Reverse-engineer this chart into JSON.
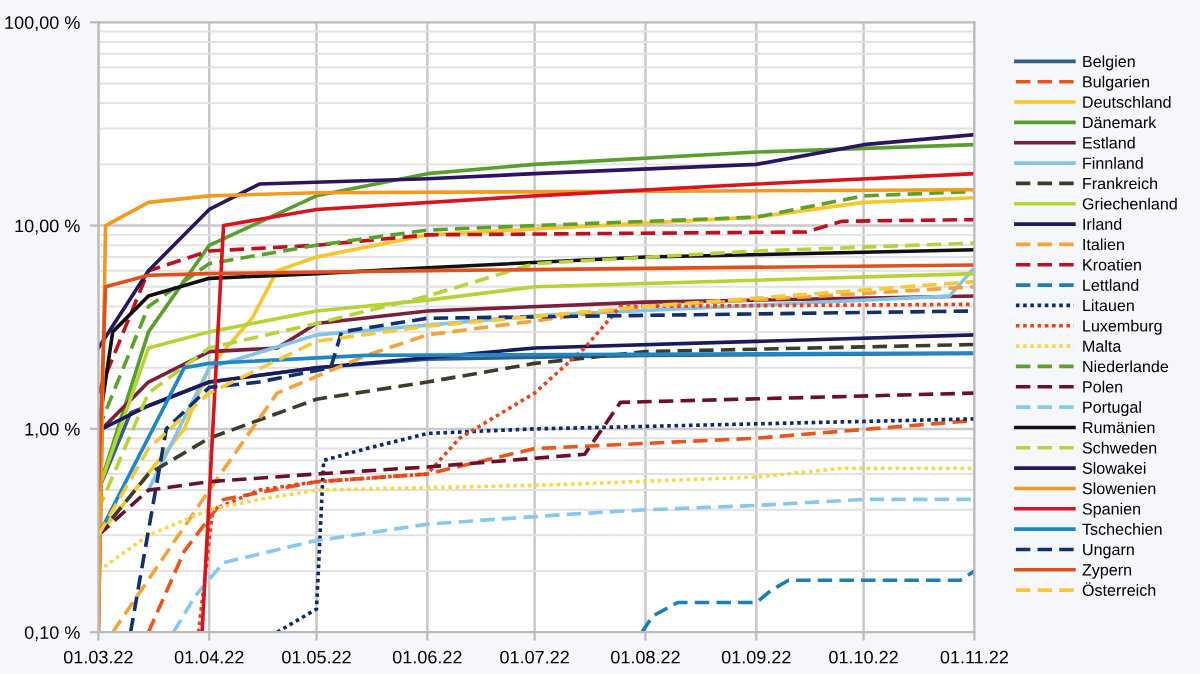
{
  "chart_data": {
    "type": "line",
    "log": "y",
    "grid": true,
    "legend": "right",
    "xlim": [
      "2022-03-01",
      "2022-11-01"
    ],
    "ylim": [
      0.1,
      100
    ],
    "xticks": [
      {
        "value": "2022-03-01",
        "label": "01.03.22"
      },
      {
        "value": "2022-04-01",
        "label": "01.04.22"
      },
      {
        "value": "2022-05-01",
        "label": "01.05.22"
      },
      {
        "value": "2022-06-01",
        "label": "01.06.22"
      },
      {
        "value": "2022-07-01",
        "label": "01.07.22"
      },
      {
        "value": "2022-08-01",
        "label": "01.08.22"
      },
      {
        "value": "2022-09-01",
        "label": "01.09.22"
      },
      {
        "value": "2022-10-01",
        "label": "01.10.22"
      },
      {
        "value": "2022-11-01",
        "label": "01.11.22"
      }
    ],
    "yticks": [
      {
        "value": 0.1,
        "label": "0,10 %"
      },
      {
        "value": 1,
        "label": "1,00 %"
      },
      {
        "value": 10,
        "label": "10,00 %"
      },
      {
        "value": 100,
        "label": "100,00 %"
      }
    ],
    "series": [
      {
        "name": "Belgien",
        "color": "#2e5f8a",
        "line_style": "solid",
        "x": [
          "2022-03-01",
          "2022-03-10",
          "2022-04-01",
          "2022-05-01",
          "2022-06-01",
          "2022-08-01",
          "2022-11-01"
        ],
        "values": [
          0.5,
          1.2,
          1.7,
          2.0,
          2.2,
          2.3,
          2.35
        ]
      },
      {
        "name": "Bulgarien",
        "color": "#e8561b",
        "line_style": "dashed",
        "x": [
          "2022-03-15",
          "2022-03-25",
          "2022-04-05",
          "2022-05-01",
          "2022-06-01",
          "2022-07-01",
          "2022-09-01",
          "2022-11-01"
        ],
        "values": [
          0.1,
          0.25,
          0.45,
          0.55,
          0.6,
          0.8,
          0.9,
          1.1
        ]
      },
      {
        "name": "Deutschland",
        "color": "#f6c62b",
        "line_style": "solid",
        "x": [
          "2022-03-01",
          "2022-03-25",
          "2022-04-01",
          "2022-04-13",
          "2022-04-20",
          "2022-05-01",
          "2022-06-01",
          "2022-09-01",
          "2022-10-01",
          "2022-11-01"
        ],
        "values": [
          0.3,
          1.0,
          2.0,
          3.5,
          6.0,
          7.0,
          9.0,
          11.0,
          13.0,
          13.7
        ]
      },
      {
        "name": "Dänemark",
        "color": "#5a9e32",
        "line_style": "solid",
        "x": [
          "2022-03-01",
          "2022-03-15",
          "2022-04-01",
          "2022-05-01",
          "2022-06-01",
          "2022-07-01",
          "2022-09-01",
          "2022-11-01"
        ],
        "values": [
          0.5,
          3.0,
          8.0,
          14.0,
          18.0,
          20.0,
          23.0,
          25.0
        ]
      },
      {
        "name": "Estland",
        "color": "#7b1f3a",
        "line_style": "solid",
        "x": [
          "2022-03-01",
          "2022-03-02",
          "2022-03-15",
          "2022-04-01",
          "2022-04-20",
          "2022-05-01",
          "2022-06-01",
          "2022-08-01",
          "2022-11-01"
        ],
        "values": [
          0.1,
          1.0,
          1.7,
          2.4,
          2.5,
          3.3,
          3.8,
          4.2,
          4.5
        ]
      },
      {
        "name": "Finnland",
        "color": "#83c5ea",
        "line_style": "solid",
        "x": [
          "2022-03-15",
          "2022-04-01",
          "2022-05-01",
          "2022-07-01",
          "2022-10-25",
          "2022-11-01"
        ],
        "values": [
          0.5,
          2.0,
          2.9,
          3.6,
          4.5,
          6.2
        ]
      },
      {
        "name": "Frankreich",
        "color": "#3c3c2c",
        "line_style": "dashed",
        "x": [
          "2022-03-01",
          "2022-03-15",
          "2022-04-01",
          "2022-05-01",
          "2022-06-01",
          "2022-07-01",
          "2022-08-01",
          "2022-11-01"
        ],
        "values": [
          0.3,
          0.6,
          0.9,
          1.4,
          1.7,
          2.1,
          2.4,
          2.6
        ]
      },
      {
        "name": "Griechenland",
        "color": "#b5d334",
        "line_style": "solid",
        "x": [
          "2022-03-01",
          "2022-03-15",
          "2022-04-01",
          "2022-05-01",
          "2022-06-01",
          "2022-07-01",
          "2022-11-01"
        ],
        "values": [
          0.5,
          2.5,
          3.0,
          3.8,
          4.3,
          5.0,
          5.8
        ]
      },
      {
        "name": "Irland",
        "color": "#1a1a5e",
        "line_style": "solid",
        "x": [
          "2022-03-02",
          "2022-03-15",
          "2022-04-01",
          "2022-05-01",
          "2022-07-01",
          "2022-11-01"
        ],
        "values": [
          1.0,
          1.3,
          1.7,
          2.0,
          2.5,
          2.9
        ]
      },
      {
        "name": "Italien",
        "color": "#f2a33a",
        "line_style": "dashed",
        "x": [
          "2022-03-05",
          "2022-04-01",
          "2022-04-20",
          "2022-05-15",
          "2022-06-01",
          "2022-08-01",
          "2022-11-01"
        ],
        "values": [
          0.1,
          0.5,
          1.5,
          2.3,
          2.9,
          4.0,
          5.0
        ]
      },
      {
        "name": "Kroatien",
        "color": "#c0101e",
        "line_style": "dashed",
        "x": [
          "2022-03-01",
          "2022-03-15",
          "2022-04-01",
          "2022-05-01",
          "2022-06-01",
          "2022-09-15",
          "2022-09-25",
          "2022-11-01"
        ],
        "values": [
          1.5,
          6.0,
          7.5,
          8.0,
          9.0,
          9.3,
          10.5,
          10.7
        ]
      },
      {
        "name": "Lettland",
        "color": "#1a7fb5",
        "line_style": "dashed",
        "x": [
          "2022-07-31",
          "2022-08-03",
          "2022-08-10",
          "2022-09-01",
          "2022-09-05",
          "2022-09-10",
          "2022-10-28",
          "2022-11-01"
        ],
        "values": [
          0.1,
          0.12,
          0.14,
          0.14,
          0.16,
          0.18,
          0.18,
          0.2
        ]
      },
      {
        "name": "Litauen",
        "color": "#0d2a6b",
        "line_style": "dotted",
        "x": [
          "2022-04-20",
          "2022-05-01",
          "2022-05-03",
          "2022-05-15",
          "2022-06-01",
          "2022-07-01",
          "2022-11-01"
        ],
        "values": [
          0.1,
          0.13,
          0.7,
          0.8,
          0.95,
          1.0,
          1.12
        ]
      },
      {
        "name": "Luxemburg",
        "color": "#e8431b",
        "line_style": "dotted",
        "x": [
          "2022-03-29",
          "2022-04-02",
          "2022-04-15",
          "2022-05-01",
          "2022-06-01",
          "2022-06-10",
          "2022-07-01",
          "2022-07-15",
          "2022-07-25",
          "2022-11-01"
        ],
        "values": [
          0.1,
          0.4,
          0.5,
          0.55,
          0.6,
          0.9,
          1.5,
          2.5,
          4.0,
          4.1
        ]
      },
      {
        "name": "Malta",
        "color": "#f7d84a",
        "line_style": "dotted",
        "x": [
          "2022-03-01",
          "2022-03-15",
          "2022-04-01",
          "2022-04-15",
          "2022-05-01",
          "2022-07-05",
          "2022-09-01",
          "2022-09-25",
          "2022-11-01"
        ],
        "values": [
          0.2,
          0.3,
          0.4,
          0.45,
          0.5,
          0.53,
          0.58,
          0.64,
          0.64
        ]
      },
      {
        "name": "Niederlande",
        "color": "#5ca12a",
        "line_style": "dashed",
        "x": [
          "2022-03-01",
          "2022-03-15",
          "2022-04-01",
          "2022-05-01",
          "2022-06-01",
          "2022-07-01",
          "2022-09-01",
          "2022-10-01",
          "2022-11-01"
        ],
        "values": [
          1.0,
          4.0,
          6.5,
          8.0,
          9.5,
          10.0,
          11.0,
          14.0,
          14.7
        ]
      },
      {
        "name": "Polen",
        "color": "#6b0f2a",
        "line_style": "dashed",
        "x": [
          "2022-03-01",
          "2022-03-15",
          "2022-04-01",
          "2022-05-01",
          "2022-06-01",
          "2022-07-15",
          "2022-07-25",
          "2022-11-01"
        ],
        "values": [
          0.3,
          0.5,
          0.55,
          0.6,
          0.65,
          0.75,
          1.35,
          1.5
        ]
      },
      {
        "name": "Portugal",
        "color": "#87c9ee",
        "line_style": "dashed",
        "x": [
          "2022-03-22",
          "2022-03-28",
          "2022-04-05",
          "2022-04-30",
          "2022-06-01",
          "2022-07-10",
          "2022-08-01",
          "2022-09-01",
          "2022-10-01",
          "2022-11-01"
        ],
        "values": [
          0.1,
          0.15,
          0.22,
          0.28,
          0.34,
          0.38,
          0.4,
          0.42,
          0.45,
          0.45
        ]
      },
      {
        "name": "Rumänien",
        "color": "#111111",
        "line_style": "solid",
        "x": [
          "2022-03-01",
          "2022-03-05",
          "2022-03-15",
          "2022-04-01",
          "2022-05-01",
          "2022-06-01",
          "2022-08-01",
          "2022-11-01"
        ],
        "values": [
          1.0,
          3.0,
          4.5,
          5.5,
          5.8,
          6.2,
          7.0,
          7.6
        ]
      },
      {
        "name": "Schweden",
        "color": "#b8d33a",
        "line_style": "dashed",
        "x": [
          "2022-03-01",
          "2022-03-15",
          "2022-04-01",
          "2022-05-01",
          "2022-06-01",
          "2022-07-01",
          "2022-09-01",
          "2022-11-01"
        ],
        "values": [
          0.4,
          1.5,
          2.5,
          3.3,
          4.5,
          6.5,
          7.5,
          8.2
        ]
      },
      {
        "name": "Slowakei",
        "color": "#2b1560",
        "line_style": "solid",
        "x": [
          "2022-03-01",
          "2022-03-15",
          "2022-04-01",
          "2022-04-15",
          "2022-06-01",
          "2022-07-01",
          "2022-09-01",
          "2022-10-01",
          "2022-11-01"
        ],
        "values": [
          2.5,
          6.0,
          12.0,
          16.0,
          17.0,
          18.0,
          20.0,
          25.0,
          28.0
        ]
      },
      {
        "name": "Slowenien",
        "color": "#f39a1e",
        "line_style": "solid",
        "x": [
          "2022-03-01",
          "2022-03-03",
          "2022-03-15",
          "2022-04-01",
          "2022-05-01",
          "2022-11-01"
        ],
        "values": [
          0.1,
          10.0,
          13.0,
          14.0,
          14.5,
          15.0
        ]
      },
      {
        "name": "Spanien",
        "color": "#d8141e",
        "line_style": "solid",
        "x": [
          "2022-03-30",
          "2022-04-05",
          "2022-05-01",
          "2022-07-01",
          "2022-09-01",
          "2022-11-01"
        ],
        "values": [
          0.1,
          10.0,
          12.0,
          14.0,
          16.0,
          18.0
        ]
      },
      {
        "name": "Tschechien",
        "color": "#1e87c8",
        "line_style": "solid",
        "x": [
          "2022-03-01",
          "2022-03-25",
          "2022-04-01",
          "2022-05-15",
          "2022-11-01"
        ],
        "values": [
          0.3,
          2.0,
          2.1,
          2.3,
          2.36
        ]
      },
      {
        "name": "Ungarn",
        "color": "#12306e",
        "line_style": "dashed",
        "x": [
          "2022-03-10",
          "2022-03-20",
          "2022-04-01",
          "2022-04-15",
          "2022-05-05",
          "2022-05-08",
          "2022-06-01",
          "2022-11-01"
        ],
        "values": [
          0.1,
          1.0,
          1.6,
          1.7,
          2.0,
          3.0,
          3.5,
          3.8
        ]
      },
      {
        "name": "Zypern",
        "color": "#e0501a",
        "line_style": "solid",
        "x": [
          "2022-03-01",
          "2022-03-03",
          "2022-03-15",
          "2022-04-01",
          "2022-06-01",
          "2022-11-01"
        ],
        "values": [
          0.5,
          5.0,
          5.7,
          5.8,
          6.0,
          6.4
        ]
      },
      {
        "name": "Österreich",
        "color": "#f7c83a",
        "line_style": "dashed",
        "x": [
          "2022-03-01",
          "2022-03-15",
          "2022-04-01",
          "2022-05-01",
          "2022-06-01",
          "2022-08-01",
          "2022-11-01"
        ],
        "values": [
          0.3,
          0.8,
          1.5,
          2.7,
          3.2,
          4.0,
          5.3
        ]
      }
    ]
  }
}
